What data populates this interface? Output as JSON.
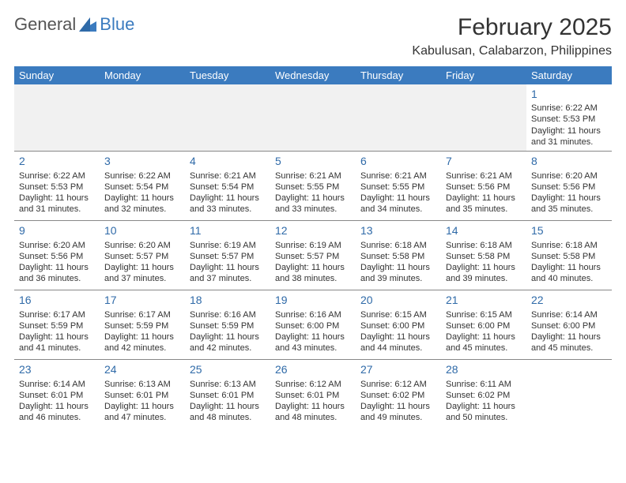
{
  "brand": {
    "text1": "General",
    "text2": "Blue",
    "accent_color": "#3b7bbf"
  },
  "title": "February 2025",
  "location": "Kabulusan, Calabarzon, Philippines",
  "colors": {
    "header_bg": "#3b7bbf",
    "header_text": "#ffffff",
    "daynum": "#2f6aa8",
    "cell_border": "#888888",
    "body_text": "#333333",
    "empty_bg": "#f1f1f1"
  },
  "day_headers": [
    "Sunday",
    "Monday",
    "Tuesday",
    "Wednesday",
    "Thursday",
    "Friday",
    "Saturday"
  ],
  "weeks": [
    [
      null,
      null,
      null,
      null,
      null,
      null,
      {
        "n": "1",
        "sunrise": "Sunrise: 6:22 AM",
        "sunset": "Sunset: 5:53 PM",
        "day1": "Daylight: 11 hours",
        "day2": "and 31 minutes."
      }
    ],
    [
      {
        "n": "2",
        "sunrise": "Sunrise: 6:22 AM",
        "sunset": "Sunset: 5:53 PM",
        "day1": "Daylight: 11 hours",
        "day2": "and 31 minutes."
      },
      {
        "n": "3",
        "sunrise": "Sunrise: 6:22 AM",
        "sunset": "Sunset: 5:54 PM",
        "day1": "Daylight: 11 hours",
        "day2": "and 32 minutes."
      },
      {
        "n": "4",
        "sunrise": "Sunrise: 6:21 AM",
        "sunset": "Sunset: 5:54 PM",
        "day1": "Daylight: 11 hours",
        "day2": "and 33 minutes."
      },
      {
        "n": "5",
        "sunrise": "Sunrise: 6:21 AM",
        "sunset": "Sunset: 5:55 PM",
        "day1": "Daylight: 11 hours",
        "day2": "and 33 minutes."
      },
      {
        "n": "6",
        "sunrise": "Sunrise: 6:21 AM",
        "sunset": "Sunset: 5:55 PM",
        "day1": "Daylight: 11 hours",
        "day2": "and 34 minutes."
      },
      {
        "n": "7",
        "sunrise": "Sunrise: 6:21 AM",
        "sunset": "Sunset: 5:56 PM",
        "day1": "Daylight: 11 hours",
        "day2": "and 35 minutes."
      },
      {
        "n": "8",
        "sunrise": "Sunrise: 6:20 AM",
        "sunset": "Sunset: 5:56 PM",
        "day1": "Daylight: 11 hours",
        "day2": "and 35 minutes."
      }
    ],
    [
      {
        "n": "9",
        "sunrise": "Sunrise: 6:20 AM",
        "sunset": "Sunset: 5:56 PM",
        "day1": "Daylight: 11 hours",
        "day2": "and 36 minutes."
      },
      {
        "n": "10",
        "sunrise": "Sunrise: 6:20 AM",
        "sunset": "Sunset: 5:57 PM",
        "day1": "Daylight: 11 hours",
        "day2": "and 37 minutes."
      },
      {
        "n": "11",
        "sunrise": "Sunrise: 6:19 AM",
        "sunset": "Sunset: 5:57 PM",
        "day1": "Daylight: 11 hours",
        "day2": "and 37 minutes."
      },
      {
        "n": "12",
        "sunrise": "Sunrise: 6:19 AM",
        "sunset": "Sunset: 5:57 PM",
        "day1": "Daylight: 11 hours",
        "day2": "and 38 minutes."
      },
      {
        "n": "13",
        "sunrise": "Sunrise: 6:18 AM",
        "sunset": "Sunset: 5:58 PM",
        "day1": "Daylight: 11 hours",
        "day2": "and 39 minutes."
      },
      {
        "n": "14",
        "sunrise": "Sunrise: 6:18 AM",
        "sunset": "Sunset: 5:58 PM",
        "day1": "Daylight: 11 hours",
        "day2": "and 39 minutes."
      },
      {
        "n": "15",
        "sunrise": "Sunrise: 6:18 AM",
        "sunset": "Sunset: 5:58 PM",
        "day1": "Daylight: 11 hours",
        "day2": "and 40 minutes."
      }
    ],
    [
      {
        "n": "16",
        "sunrise": "Sunrise: 6:17 AM",
        "sunset": "Sunset: 5:59 PM",
        "day1": "Daylight: 11 hours",
        "day2": "and 41 minutes."
      },
      {
        "n": "17",
        "sunrise": "Sunrise: 6:17 AM",
        "sunset": "Sunset: 5:59 PM",
        "day1": "Daylight: 11 hours",
        "day2": "and 42 minutes."
      },
      {
        "n": "18",
        "sunrise": "Sunrise: 6:16 AM",
        "sunset": "Sunset: 5:59 PM",
        "day1": "Daylight: 11 hours",
        "day2": "and 42 minutes."
      },
      {
        "n": "19",
        "sunrise": "Sunrise: 6:16 AM",
        "sunset": "Sunset: 6:00 PM",
        "day1": "Daylight: 11 hours",
        "day2": "and 43 minutes."
      },
      {
        "n": "20",
        "sunrise": "Sunrise: 6:15 AM",
        "sunset": "Sunset: 6:00 PM",
        "day1": "Daylight: 11 hours",
        "day2": "and 44 minutes."
      },
      {
        "n": "21",
        "sunrise": "Sunrise: 6:15 AM",
        "sunset": "Sunset: 6:00 PM",
        "day1": "Daylight: 11 hours",
        "day2": "and 45 minutes."
      },
      {
        "n": "22",
        "sunrise": "Sunrise: 6:14 AM",
        "sunset": "Sunset: 6:00 PM",
        "day1": "Daylight: 11 hours",
        "day2": "and 45 minutes."
      }
    ],
    [
      {
        "n": "23",
        "sunrise": "Sunrise: 6:14 AM",
        "sunset": "Sunset: 6:01 PM",
        "day1": "Daylight: 11 hours",
        "day2": "and 46 minutes."
      },
      {
        "n": "24",
        "sunrise": "Sunrise: 6:13 AM",
        "sunset": "Sunset: 6:01 PM",
        "day1": "Daylight: 11 hours",
        "day2": "and 47 minutes."
      },
      {
        "n": "25",
        "sunrise": "Sunrise: 6:13 AM",
        "sunset": "Sunset: 6:01 PM",
        "day1": "Daylight: 11 hours",
        "day2": "and 48 minutes."
      },
      {
        "n": "26",
        "sunrise": "Sunrise: 6:12 AM",
        "sunset": "Sunset: 6:01 PM",
        "day1": "Daylight: 11 hours",
        "day2": "and 48 minutes."
      },
      {
        "n": "27",
        "sunrise": "Sunrise: 6:12 AM",
        "sunset": "Sunset: 6:02 PM",
        "day1": "Daylight: 11 hours",
        "day2": "and 49 minutes."
      },
      {
        "n": "28",
        "sunrise": "Sunrise: 6:11 AM",
        "sunset": "Sunset: 6:02 PM",
        "day1": "Daylight: 11 hours",
        "day2": "and 50 minutes."
      },
      null
    ]
  ]
}
